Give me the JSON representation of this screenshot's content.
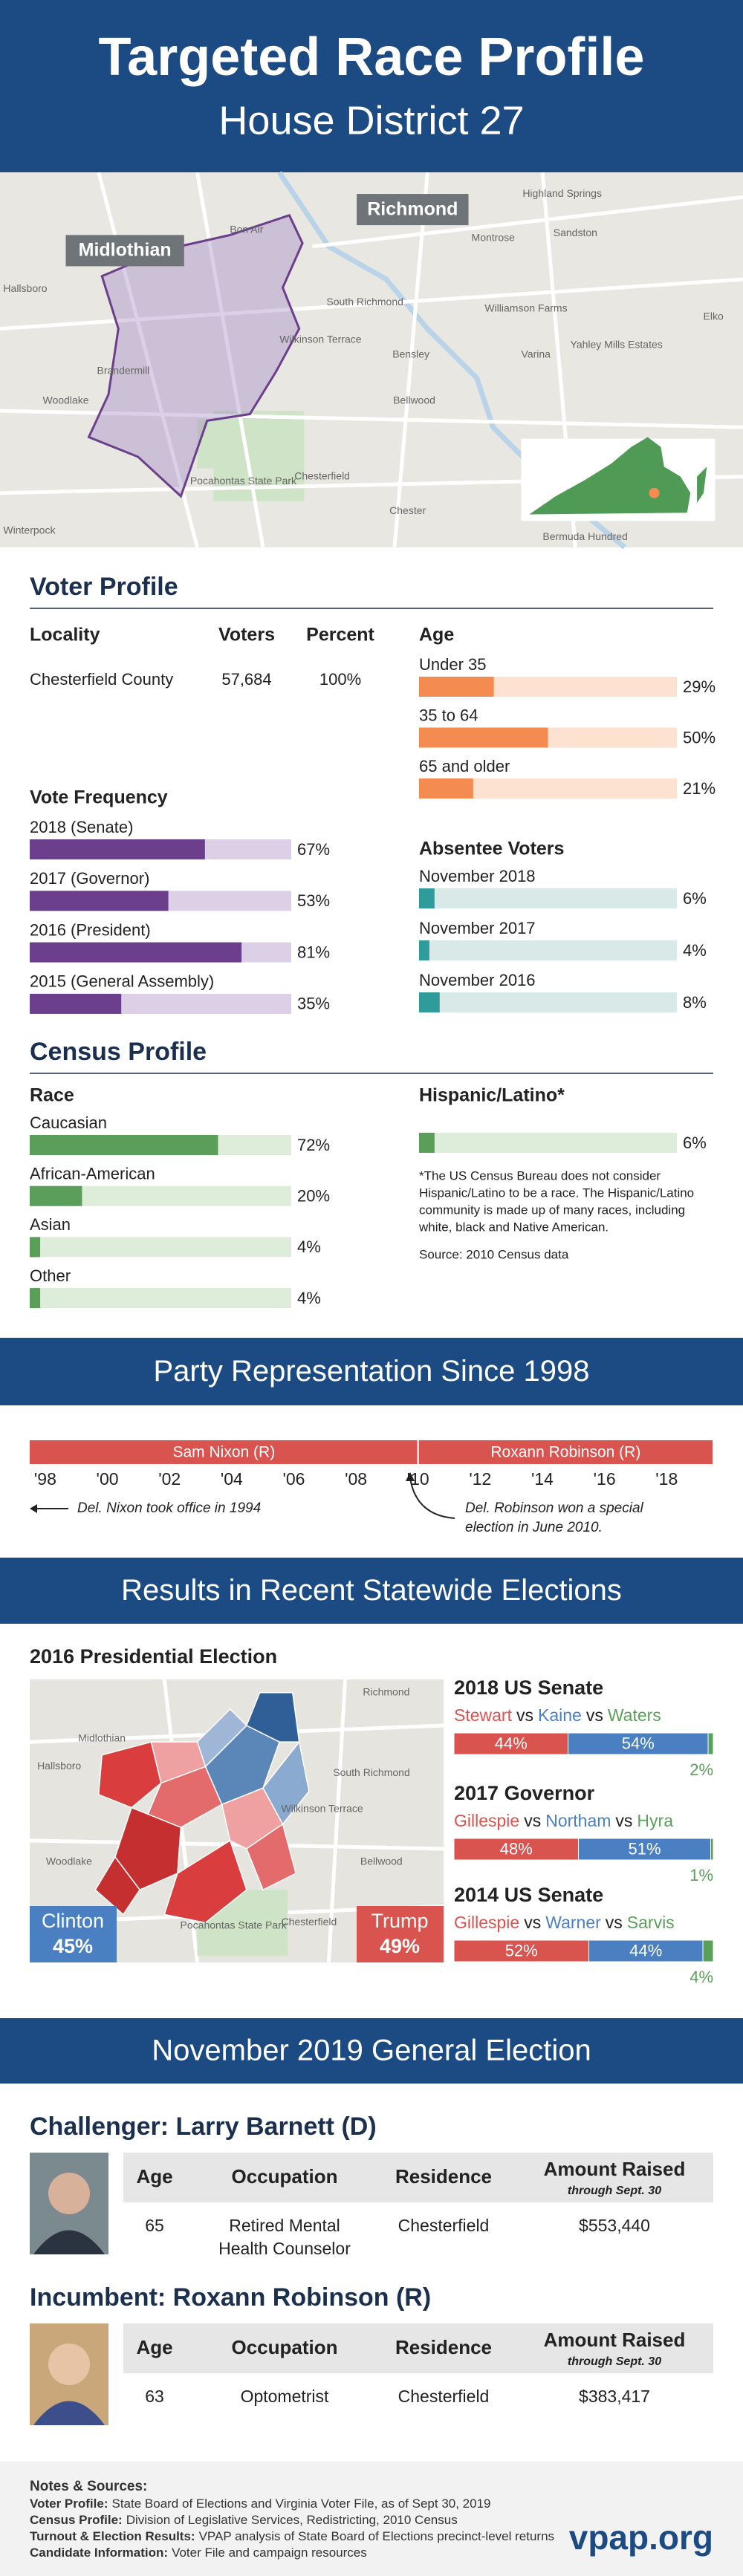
{
  "header": {
    "title": "Targeted Race Profile",
    "subtitle": "House District 27"
  },
  "district_map": {
    "badges": [
      "Midlothian",
      "Richmond"
    ],
    "labels": [
      "Highland Springs",
      "Sandston",
      "Montrose",
      "Hallsboro",
      "South Richmond",
      "Williamson Farms",
      "Elko",
      "Yahley Mills Estates",
      "Varina",
      "Bensley",
      "Bellwood",
      "Woodlake",
      "Wilkinson Terrace",
      "Pocahontas State Park",
      "Chesterfield",
      "Chester",
      "Winterpock",
      "Bermuda Hundred",
      "Bon Air",
      "Brandermill"
    ]
  },
  "voter_profile": {
    "title": "Voter Profile",
    "locality": {
      "columns": [
        "Locality",
        "Voters",
        "Percent"
      ],
      "row": [
        "Chesterfield County",
        "57,684",
        "100%"
      ]
    },
    "age": {
      "title": "Age",
      "xlim": [
        0,
        100
      ],
      "categories": [
        "Under 35",
        "35 to 64",
        "65 and older"
      ],
      "values": [
        29,
        50,
        21
      ],
      "value_labels": [
        "29%",
        "50%",
        "21%"
      ],
      "color": "#f48c52",
      "track": "#fde2d2"
    },
    "vote_frequency": {
      "title": "Vote Frequency",
      "xlim": [
        0,
        100
      ],
      "categories": [
        "2018 (Senate)",
        "2017 (Governor)",
        "2016 (President)",
        "2015 (General Assembly)"
      ],
      "values": [
        67,
        53,
        81,
        35
      ],
      "value_labels": [
        "67%",
        "53%",
        "81%",
        "35%"
      ],
      "color": "#6b3f8c",
      "track": "#dcd0e6"
    },
    "absentee": {
      "title": "Absentee Voters",
      "xlim": [
        0,
        100
      ],
      "categories": [
        "November 2018",
        "November 2017",
        "November 2016"
      ],
      "values": [
        6,
        4,
        8
      ],
      "value_labels": [
        "6%",
        "4%",
        "8%"
      ],
      "color": "#2f9b9b",
      "track": "#d8e9e7"
    }
  },
  "census_profile": {
    "title": "Census Profile",
    "race": {
      "title": "Race",
      "xlim": [
        0,
        100
      ],
      "categories": [
        "Caucasian",
        "African-American",
        "Asian",
        "Other"
      ],
      "values": [
        72,
        20,
        4,
        4
      ],
      "value_labels": [
        "72%",
        "20%",
        "4%",
        "4%"
      ],
      "color": "#5a9e5a",
      "track": "#deedda"
    },
    "hispanic": {
      "title": "Hispanic/Latino*",
      "xlim": [
        0,
        100
      ],
      "values": [
        6
      ],
      "value_labels": [
        "6%"
      ],
      "color": "#5a9e5a",
      "track": "#deedda",
      "note": [
        "*The US Census Bureau does not consider",
        "Hispanic/Latino to be a race. The Hispanic/Latino",
        "community is made up of many races, including",
        "white, black and Native American."
      ],
      "source": "Source: 2010 Census data"
    }
  },
  "party_representation": {
    "title": "Party Representation Since 1998",
    "xlim": [
      1997.5,
      2019.5
    ],
    "xticks": [
      {
        "value": 1998,
        "label": "'98"
      },
      {
        "value": 2000,
        "label": "'00"
      },
      {
        "value": 2002,
        "label": "'02"
      },
      {
        "value": 2004,
        "label": "'04"
      },
      {
        "value": 2006,
        "label": "'06"
      },
      {
        "value": 2008,
        "label": "'08"
      },
      {
        "value": 2010,
        "label": "'10"
      },
      {
        "value": 2012,
        "label": "'12"
      },
      {
        "value": 2014,
        "label": "'14"
      },
      {
        "value": 2016,
        "label": "'16"
      },
      {
        "value": 2018,
        "label": "'18"
      }
    ],
    "terms": [
      {
        "name": "Sam Nixon (R)",
        "start": 1994,
        "end": 2010,
        "color": "#d9534f"
      },
      {
        "name": "Roxann Robinson (R)",
        "start": 2010,
        "end": 2019.5,
        "color": "#d9534f"
      }
    ],
    "annotations": [
      {
        "lines": [
          "Del. Nixon took office in 1994"
        ]
      },
      {
        "lines": [
          "Del. Robinson won a special",
          "election in June 2010."
        ]
      }
    ]
  },
  "statewide": {
    "title": "Results in Recent Statewide Elections",
    "versus": "vs",
    "presidential": {
      "title": "2016 Presidential Election",
      "candidates": [
        {
          "name": "Clinton",
          "share": "45%",
          "color": "#4a7fc1"
        },
        {
          "name": "Trump",
          "share": "49%",
          "color": "#d9534f"
        }
      ],
      "map_labels": [
        "Richmond",
        "Midlothian",
        "Hallsboro",
        "Woodlake",
        "Bellwood",
        "South Richmond",
        "Wilkinson Terrace",
        "Pocahontas State Park",
        "Chesterfield"
      ]
    },
    "races": [
      {
        "title": "2018 US Senate",
        "xlim": [
          0,
          100
        ],
        "candidates": [
          {
            "name": "Stewart",
            "color": "#d9534f",
            "value": 44,
            "value_label": "44%"
          },
          {
            "name": "Kaine",
            "color": "#4a7fc1",
            "value": 54,
            "value_label": "54%"
          },
          {
            "name": "Waters",
            "color": "#5aa05a",
            "value": 2,
            "value_label": "2%"
          }
        ]
      },
      {
        "title": "2017 Governor",
        "xlim": [
          0,
          100
        ],
        "candidates": [
          {
            "name": "Gillespie",
            "color": "#d9534f",
            "value": 48,
            "value_label": "48%"
          },
          {
            "name": "Northam",
            "color": "#4a7fc1",
            "value": 51,
            "value_label": "51%"
          },
          {
            "name": "Hyra",
            "color": "#5aa05a",
            "value": 1,
            "value_label": "1%"
          }
        ]
      },
      {
        "title": "2014 US Senate",
        "xlim": [
          0,
          100
        ],
        "candidates": [
          {
            "name": "Gillespie",
            "color": "#d9534f",
            "value": 52,
            "value_label": "52%"
          },
          {
            "name": "Warner",
            "color": "#4a7fc1",
            "value": 44,
            "value_label": "44%"
          },
          {
            "name": "Sarvis",
            "color": "#5aa05a",
            "value": 4,
            "value_label": "4%"
          }
        ]
      }
    ]
  },
  "general_election": {
    "title": "November 2019 General Election",
    "columns": [
      "Age",
      "Occupation",
      "Residence",
      "Amount Raised"
    ],
    "amount_note": "through Sept. 30",
    "candidates": [
      {
        "heading": "Challenger: Larry Barnett (D)",
        "age": 65,
        "occupation": [
          "Retired Mental",
          "Health Counselor"
        ],
        "residence": "Chesterfield",
        "amount": "$553,440"
      },
      {
        "heading": "Incumbent: Roxann Robinson (R)",
        "age": 63,
        "occupation": [
          "Optometrist"
        ],
        "residence": "Chesterfield",
        "amount": "$383,417"
      }
    ]
  },
  "notes": {
    "title": "Notes & Sources:",
    "items": [
      {
        "label": "Voter Profile:",
        "text": "State Board of Elections and Virginia Voter File, as of Sept 30, 2019"
      },
      {
        "label": "Census Profile:",
        "text": "Division of Legislative Services, Redistricting, 2010 Census"
      },
      {
        "label": "Turnout & Election Results:",
        "text": "VPAP analysis of State Board of Elections precinct-level returns"
      },
      {
        "label": "Candidate Information:",
        "text": "Voter File and campaign resources"
      }
    ]
  },
  "brand": "vpap.org"
}
